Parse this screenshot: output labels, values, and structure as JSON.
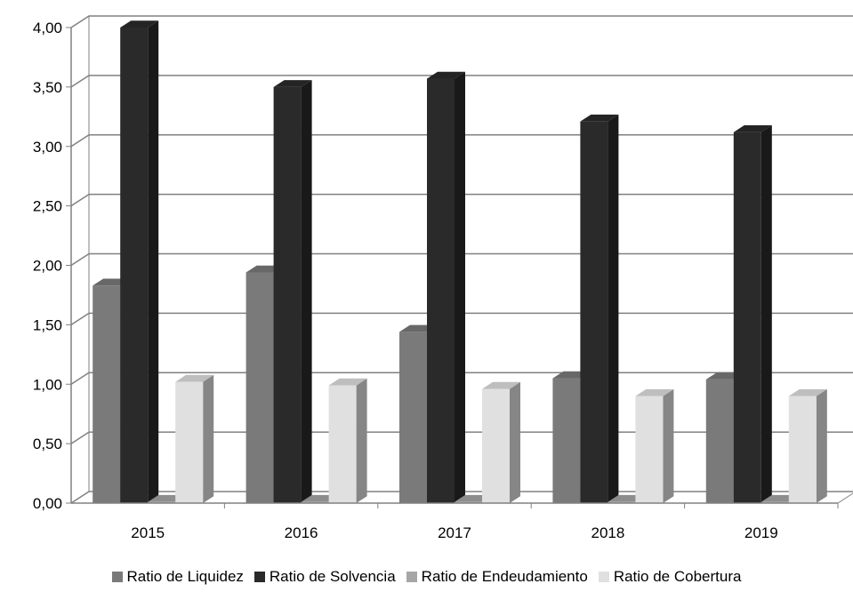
{
  "chart_data": {
    "type": "bar",
    "style": "3d-clustered-column",
    "title": "",
    "xlabel": "",
    "ylabel": "",
    "categories": [
      "2015",
      "2016",
      "2017",
      "2018",
      "2019"
    ],
    "series": [
      {
        "name": "Ratio de Liquidez",
        "color": "#7a7a7a",
        "values": [
          1.83,
          1.94,
          1.44,
          1.05,
          1.04
        ]
      },
      {
        "name": "Ratio de Solvencia",
        "color": "#2a2a2a",
        "values": [
          4.0,
          3.5,
          3.57,
          3.21,
          3.12
        ]
      },
      {
        "name": "Ratio de Endeudamiento",
        "color": "#a6a6a6",
        "values": [
          0.01,
          0.01,
          0.01,
          0.01,
          0.01
        ]
      },
      {
        "name": "Ratio de Cobertura",
        "color": "#e0e0e0",
        "values": [
          1.02,
          0.99,
          0.96,
          0.9,
          0.9
        ]
      }
    ],
    "ylim": [
      0,
      4
    ],
    "yticks": [
      "0,00",
      "0,50",
      "1,00",
      "1,50",
      "2,00",
      "2,50",
      "3,00",
      "3,50",
      "4,00"
    ],
    "grid": true,
    "legend": "bottom"
  }
}
